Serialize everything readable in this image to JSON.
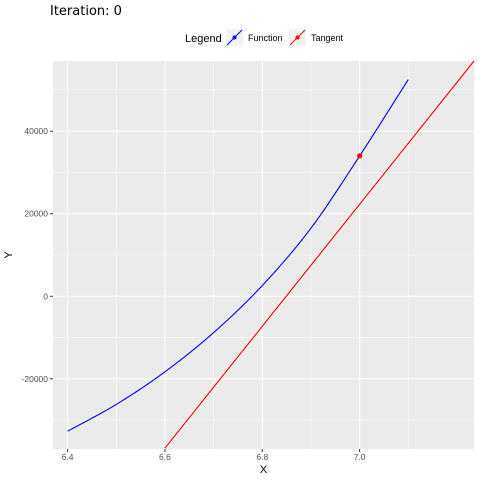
{
  "chart_data": {
    "type": "line",
    "title": "Iteration: 0",
    "xlabel": "X",
    "ylabel": "Y",
    "xlim": [
      6.37,
      7.235
    ],
    "ylim": [
      -37000,
      57000
    ],
    "x_ticks": [
      6.4,
      6.6,
      6.8,
      7.0
    ],
    "x_tick_labels": [
      "6.4",
      "6.6",
      "6.8",
      "7.0"
    ],
    "y_ticks": [
      -20000,
      0,
      20000,
      40000
    ],
    "y_tick_labels": [
      "-20000",
      "0",
      "20000",
      "40000"
    ],
    "grid": true,
    "legend": {
      "title": "Legend",
      "position": "top",
      "entries": [
        "Function",
        "Tangent"
      ]
    },
    "colors": {
      "Function": "#0000ff",
      "Tangent": "#ff0000",
      "panel_background": "#ebebeb",
      "grid_major": "#ffffff"
    },
    "series": [
      {
        "name": "Function",
        "x": [
          6.4,
          6.5,
          6.6,
          6.7,
          6.8,
          6.9,
          7.0,
          7.1
        ],
        "y": [
          -32700,
          -26200,
          -18300,
          -8800,
          2600,
          16500,
          34000,
          52500
        ]
      },
      {
        "name": "Tangent",
        "x": [
          6.6,
          7.235
        ],
        "y": [
          -36800,
          57000
        ]
      }
    ],
    "points": [
      {
        "series": "Tangent",
        "x": 7.0,
        "y": 34000
      }
    ]
  }
}
